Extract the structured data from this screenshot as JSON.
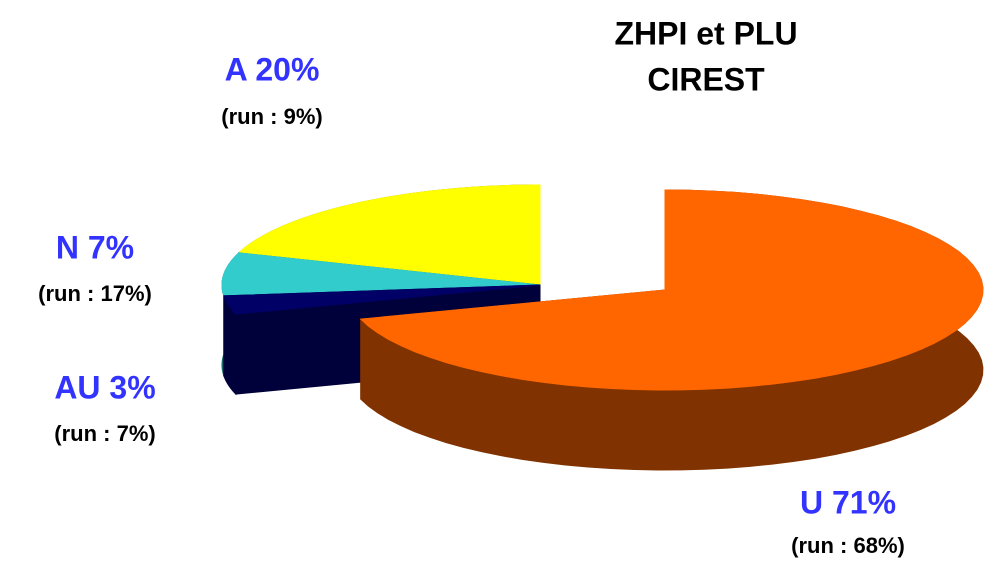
{
  "chart_data": {
    "type": "pie",
    "title": [
      "ZHPI et PLU",
      "CIREST"
    ],
    "categories": [
      "U",
      "AU",
      "N",
      "A"
    ],
    "values": [
      71,
      3,
      7,
      20
    ],
    "value_labels": [
      "U 71%",
      "AU 3%",
      "N 7%",
      "A 20%"
    ],
    "run_labels": [
      "(run : 68%)",
      "(run : 7%)",
      "(run : 17%)",
      "(run : 9%)"
    ],
    "colors": [
      "#ff6600",
      "#000066",
      "#33cccc",
      "#ffff00"
    ],
    "side_colors": [
      "#803300",
      "#00003a",
      "#1a6b6b",
      "#808000"
    ],
    "label_color": "#3333ff"
  }
}
